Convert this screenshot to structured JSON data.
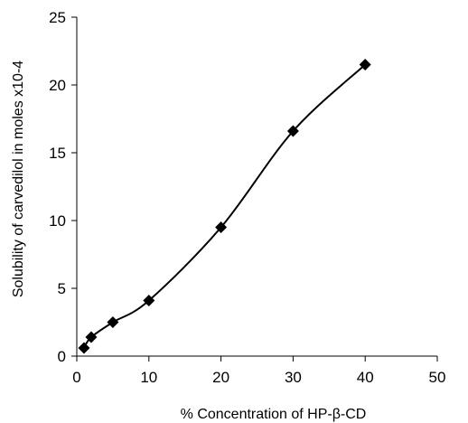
{
  "chart_data": {
    "type": "line",
    "title": "",
    "xlabel": "% Concentration of HP-β-CD",
    "ylabel": "Solubility of carvedilol in moles x10-4",
    "xlim": [
      0,
      50
    ],
    "ylim": [
      0,
      25
    ],
    "xticks": [
      "0",
      "10",
      "20",
      "30",
      "40",
      "50"
    ],
    "yticks": [
      "0",
      "5",
      "10",
      "15",
      "20",
      "25"
    ],
    "grid": false,
    "legend": "none",
    "series": [
      {
        "marker": "diamond",
        "color": "#000000",
        "x": [
          1,
          2,
          5,
          10,
          20,
          30,
          40
        ],
        "y": [
          0.6,
          1.4,
          2.5,
          4.1,
          9.5,
          16.6,
          21.5
        ]
      }
    ]
  }
}
